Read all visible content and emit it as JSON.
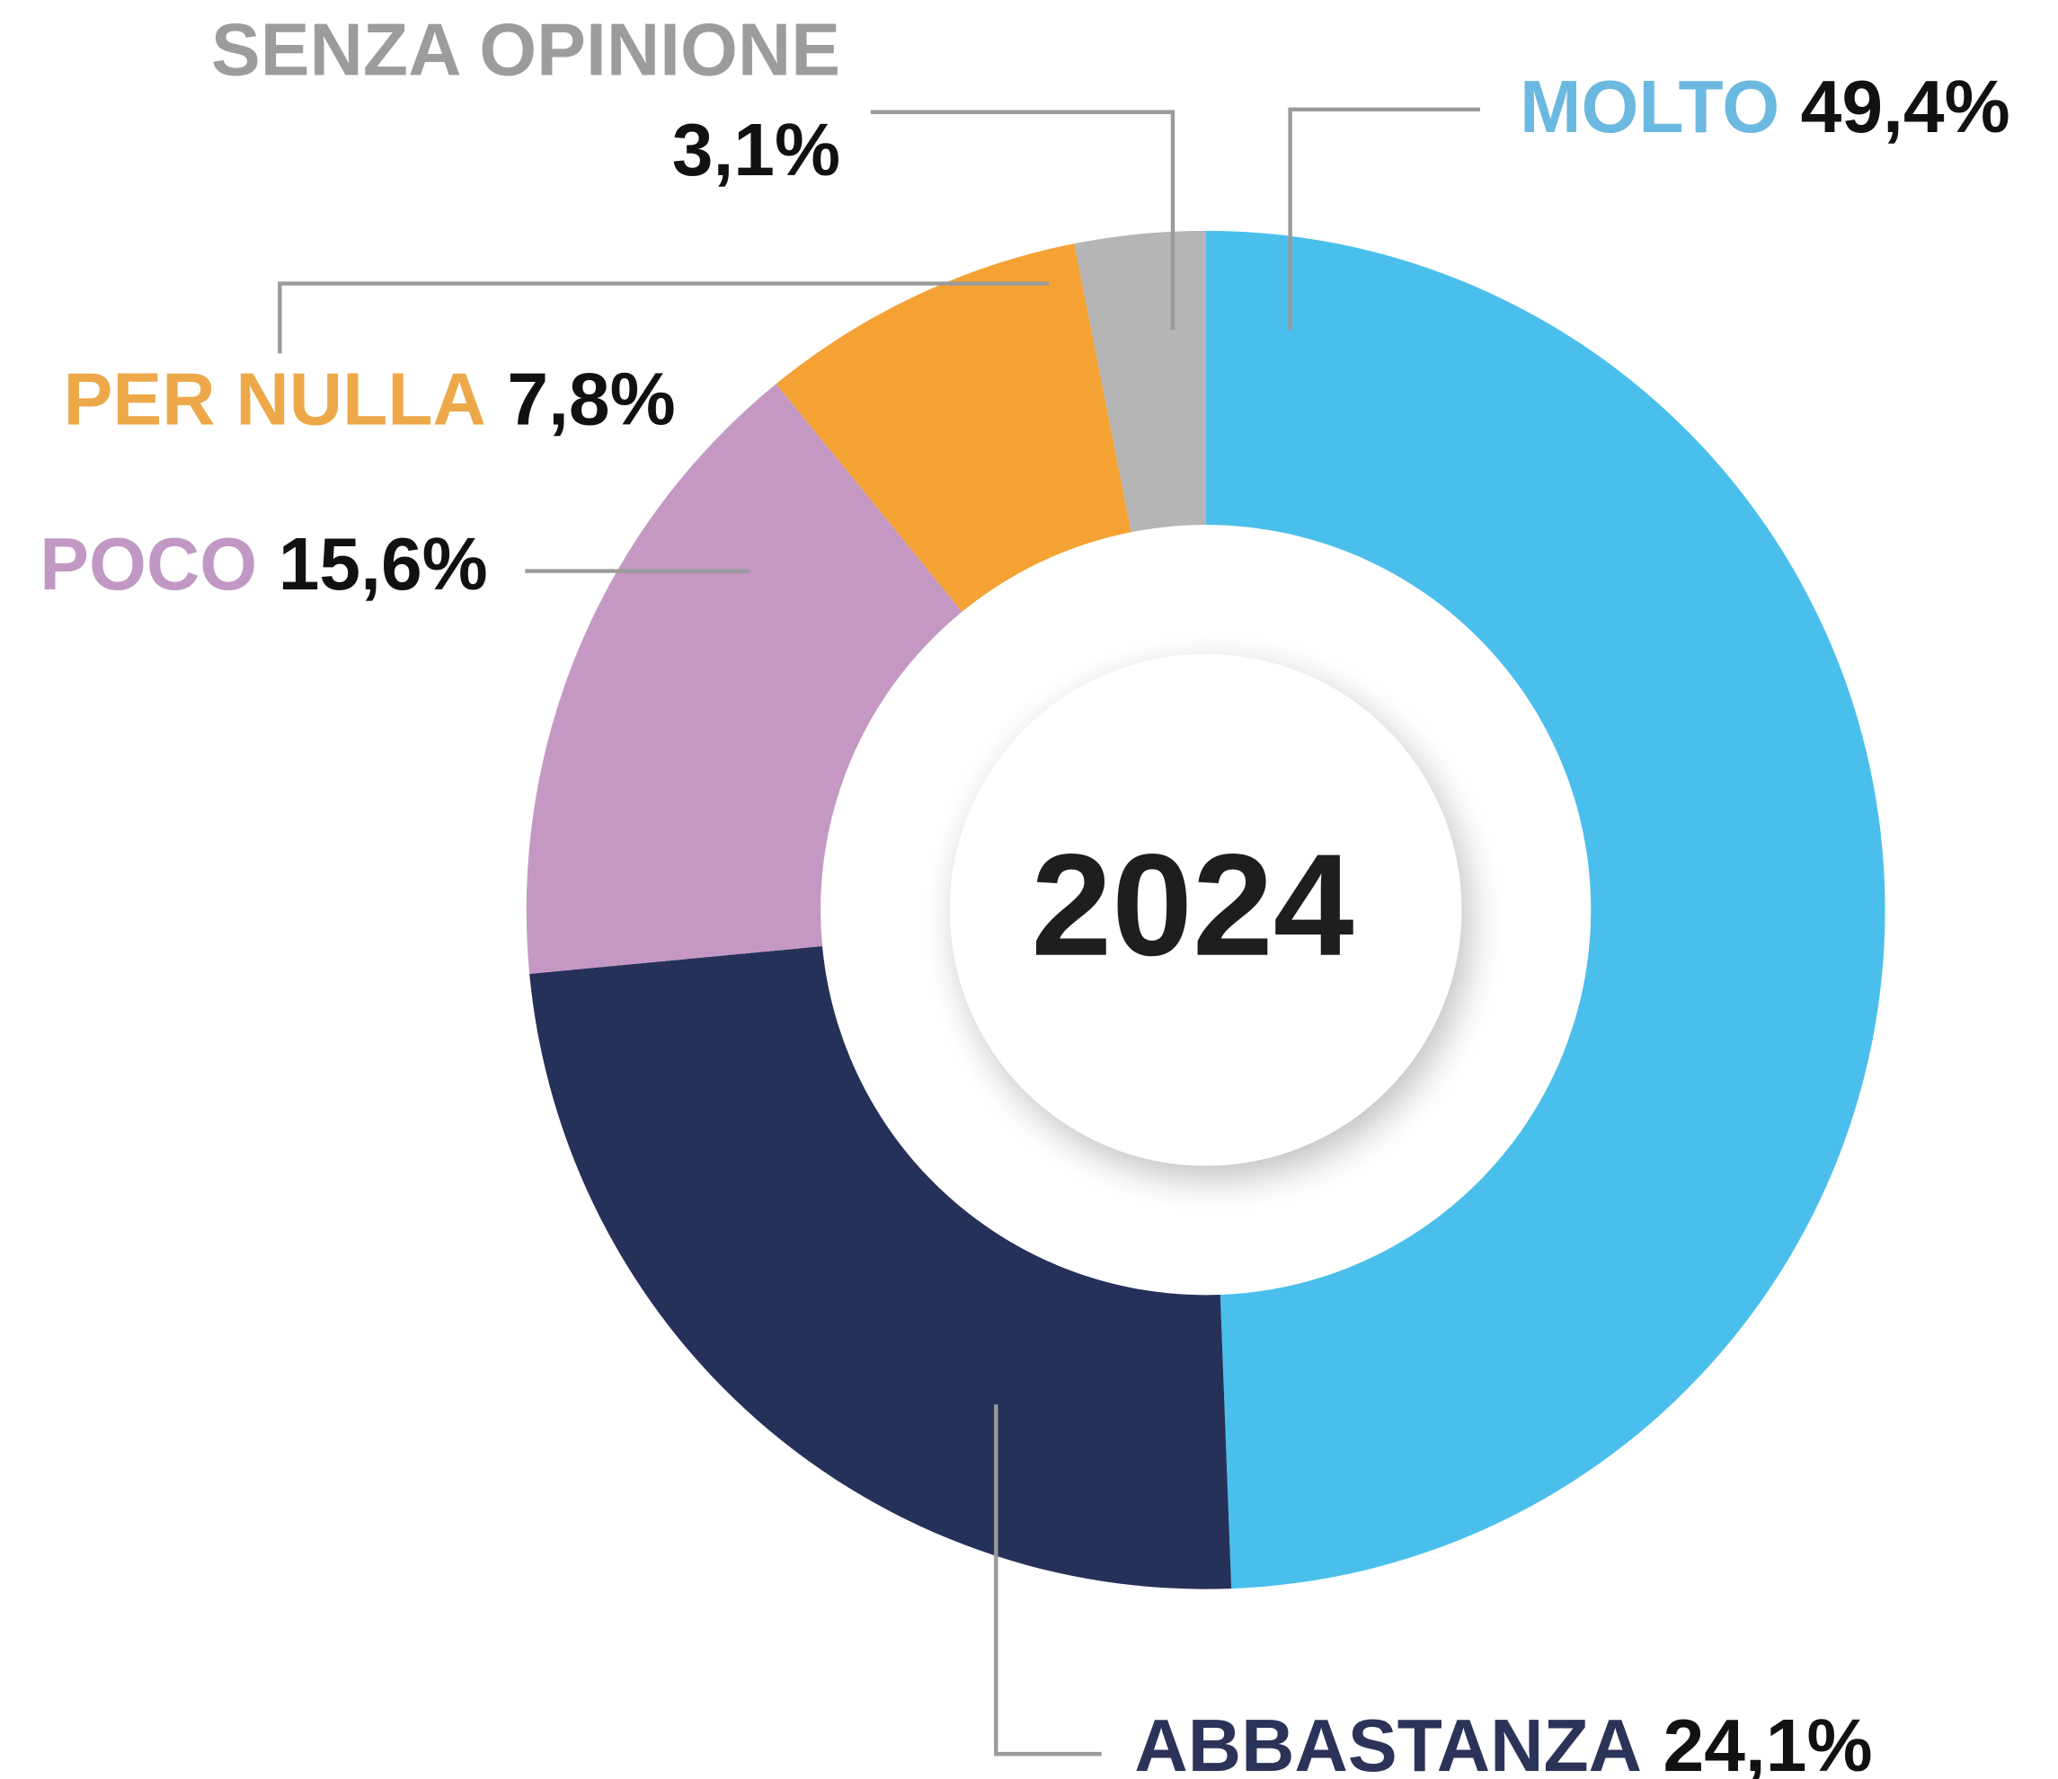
{
  "chart_data": {
    "type": "donut",
    "center_label": "2024",
    "categories": [
      "MOLTO",
      "ABBASTANZA",
      "POCO",
      "PER NULLA",
      "SENZA OPINIONE"
    ],
    "values": [
      49.4,
      24.1,
      15.6,
      7.8,
      3.1
    ],
    "value_labels": [
      "49,4%",
      "24,1%",
      "15,6%",
      "7,8%",
      "3,1%"
    ],
    "colors": [
      "#4bbfeb",
      "#26315a",
      "#c598c3",
      "#f4a234",
      "#b5b5b5"
    ],
    "label_colors": [
      "#6bb8e0",
      "#2b3359",
      "#c198c4",
      "#eda84a",
      "#9c9c9c"
    ]
  }
}
